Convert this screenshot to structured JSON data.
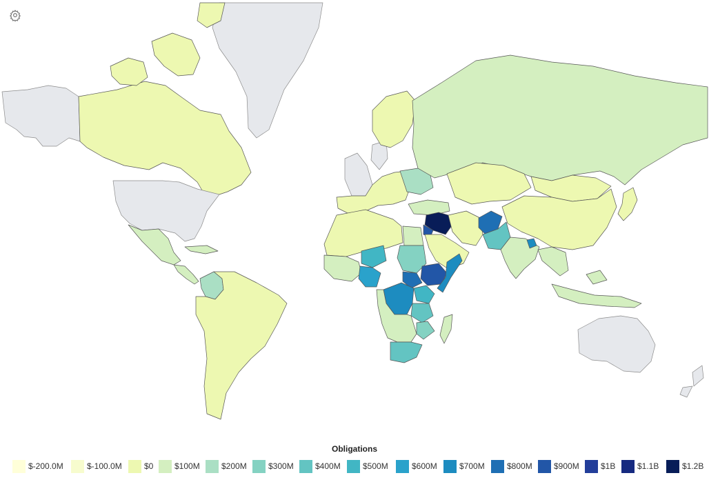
{
  "legend": {
    "title": "Obligations",
    "items": [
      {
        "label": "$-200.0M",
        "color": "#ffffd9"
      },
      {
        "label": "$-100.0M",
        "color": "#f7fcce"
      },
      {
        "label": "$0",
        "color": "#edf8b1"
      },
      {
        "label": "$100M",
        "color": "#d4efc0"
      },
      {
        "label": "$200M",
        "color": "#aadfc4"
      },
      {
        "label": "$300M",
        "color": "#84d2c2"
      },
      {
        "label": "$400M",
        "color": "#63c4c2"
      },
      {
        "label": "$500M",
        "color": "#41b6c4"
      },
      {
        "label": "$600M",
        "color": "#2aa2cb"
      },
      {
        "label": "$700M",
        "color": "#1d8cc0"
      },
      {
        "label": "$800M",
        "color": "#1f6fb4"
      },
      {
        "label": "$900M",
        "color": "#2256a7"
      },
      {
        "label": "$1B",
        "color": "#233e9a"
      },
      {
        "label": "$1.1B",
        "color": "#162a80"
      },
      {
        "label": "$1.2B",
        "color": "#081d58"
      }
    ]
  },
  "map": {
    "nodata_color": "#e6e8ec",
    "regions": [
      {
        "id": "alaska",
        "color": "#e6e8ec"
      },
      {
        "id": "greenland",
        "color": "#e6e8ec"
      },
      {
        "id": "canada",
        "color": "#edf8b1"
      },
      {
        "id": "usa",
        "color": "#e6e8ec"
      },
      {
        "id": "mexico",
        "color": "#d4efc0"
      },
      {
        "id": "central-america",
        "color": "#d4efc0"
      },
      {
        "id": "colombia",
        "color": "#aadfc4"
      },
      {
        "id": "south-america",
        "color": "#edf8b1"
      },
      {
        "id": "europe-west",
        "color": "#e6e8ec"
      },
      {
        "id": "europe",
        "color": "#edf8b1"
      },
      {
        "id": "ukraine",
        "color": "#aadfc4"
      },
      {
        "id": "russia",
        "color": "#d4efc0"
      },
      {
        "id": "kazakhstan",
        "color": "#edf8b1"
      },
      {
        "id": "turkey",
        "color": "#d4efc0"
      },
      {
        "id": "syria-iraq",
        "color": "#081d58"
      },
      {
        "id": "jordan",
        "color": "#2256a7"
      },
      {
        "id": "saudi-arabia",
        "color": "#edf8b1"
      },
      {
        "id": "iran",
        "color": "#edf8b1"
      },
      {
        "id": "afghanistan",
        "color": "#1f6fb4"
      },
      {
        "id": "pakistan",
        "color": "#63c4c2"
      },
      {
        "id": "india",
        "color": "#d4efc0"
      },
      {
        "id": "bangladesh",
        "color": "#1d8cc0"
      },
      {
        "id": "china",
        "color": "#edf8b1"
      },
      {
        "id": "mongolia",
        "color": "#edf8b1"
      },
      {
        "id": "japan",
        "color": "#edf8b1"
      },
      {
        "id": "southeast-asia",
        "color": "#d4efc0"
      },
      {
        "id": "indonesia",
        "color": "#d4efc0"
      },
      {
        "id": "australia",
        "color": "#e6e8ec"
      },
      {
        "id": "new-zealand",
        "color": "#e6e8ec"
      },
      {
        "id": "north-africa",
        "color": "#edf8b1"
      },
      {
        "id": "egypt",
        "color": "#d4efc0"
      },
      {
        "id": "west-africa",
        "color": "#d4efc0"
      },
      {
        "id": "nigeria",
        "color": "#2aa2cb"
      },
      {
        "id": "niger",
        "color": "#41b6c4"
      },
      {
        "id": "sudan",
        "color": "#84d2c2"
      },
      {
        "id": "south-sudan",
        "color": "#1f6fb4"
      },
      {
        "id": "ethiopia",
        "color": "#2256a7"
      },
      {
        "id": "somalia",
        "color": "#1d8cc0"
      },
      {
        "id": "drc",
        "color": "#1d8cc0"
      },
      {
        "id": "uganda-kenya",
        "color": "#41b6c4"
      },
      {
        "id": "tanzania",
        "color": "#63c4c2"
      },
      {
        "id": "east-africa-south",
        "color": "#84d2c2"
      },
      {
        "id": "southern-africa",
        "color": "#d4efc0"
      },
      {
        "id": "south-africa",
        "color": "#63c4c2"
      },
      {
        "id": "madagascar",
        "color": "#d4efc0"
      }
    ]
  }
}
